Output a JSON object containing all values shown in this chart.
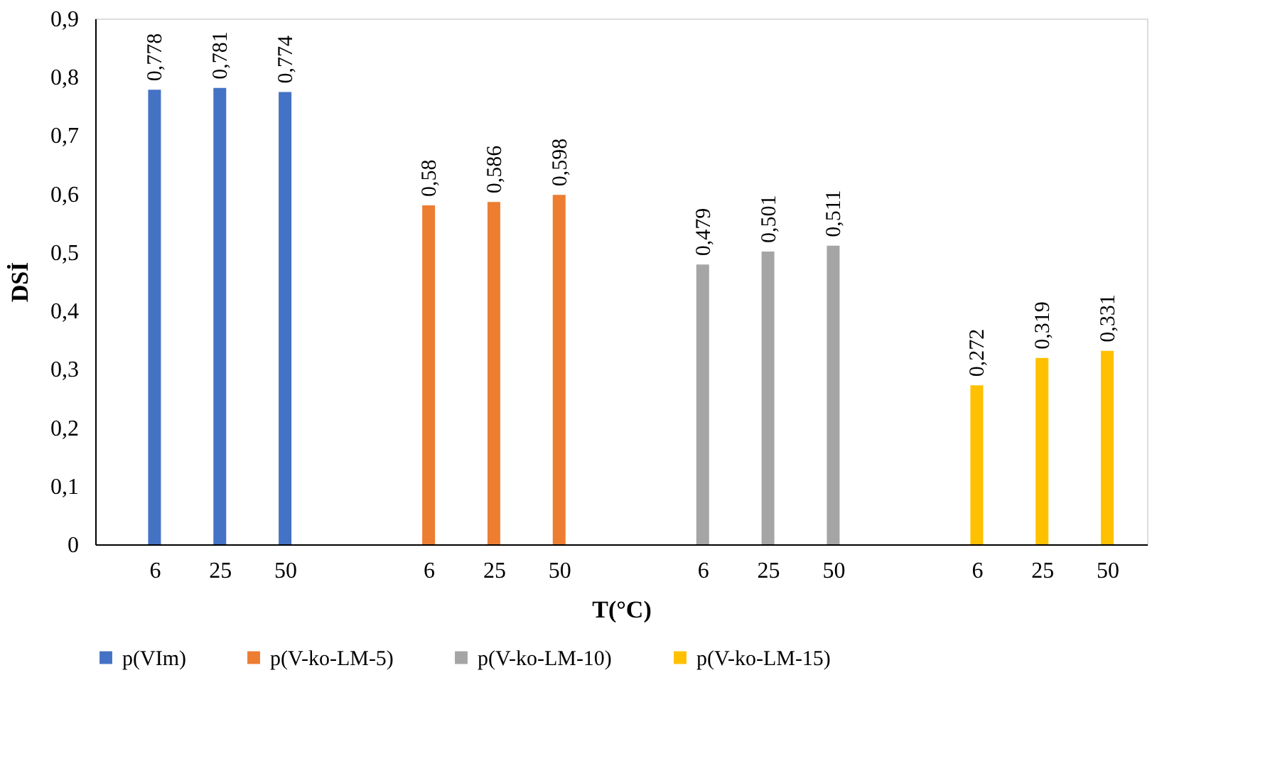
{
  "chart_data": {
    "type": "bar",
    "xlabel": "T(°C)",
    "ylabel": "DSİ",
    "categories": [
      "6",
      "25",
      "50",
      "6",
      "25",
      "50",
      "6",
      "25",
      "50",
      "6",
      "25",
      "50"
    ],
    "series": [
      {
        "name": "p(VIm)",
        "color": "#4472c4",
        "values": [
          0.778,
          0.781,
          0.774,
          null,
          null,
          null,
          null,
          null,
          null,
          null,
          null,
          null
        ],
        "value_labels": [
          "0,778",
          "0,781",
          "0,774",
          null,
          null,
          null,
          null,
          null,
          null,
          null,
          null,
          null
        ]
      },
      {
        "name": "p(V-ko-LM-5)",
        "color": "#ed7d31",
        "values": [
          null,
          null,
          null,
          0.58,
          0.586,
          0.598,
          null,
          null,
          null,
          null,
          null,
          null
        ],
        "value_labels": [
          null,
          null,
          null,
          "0,58",
          "0,586",
          "0,598",
          null,
          null,
          null,
          null,
          null,
          null
        ]
      },
      {
        "name": "p(V-ko-LM-10)",
        "color": "#a5a5a5",
        "values": [
          null,
          null,
          null,
          null,
          null,
          null,
          0.479,
          0.501,
          0.511,
          null,
          null,
          null
        ],
        "value_labels": [
          null,
          null,
          null,
          null,
          null,
          null,
          "0,479",
          "0,501",
          "0,511",
          null,
          null,
          null
        ]
      },
      {
        "name": "p(V-ko-LM-15)",
        "color": "#ffc000",
        "values": [
          null,
          null,
          null,
          null,
          null,
          null,
          null,
          null,
          null,
          0.272,
          0.319,
          0.331
        ],
        "value_labels": [
          null,
          null,
          null,
          null,
          null,
          null,
          null,
          null,
          null,
          "0,272",
          "0,319",
          "0,331"
        ]
      }
    ],
    "ylim": [
      0,
      0.9
    ],
    "yticks": [
      0,
      {
        "value": 0.1,
        "label": "0,1"
      },
      {
        "value": 0.2,
        "label": "0,2"
      },
      {
        "value": 0.3,
        "label": "0,3"
      },
      {
        "value": 0.4,
        "label": "0,4"
      },
      {
        "value": 0.5,
        "label": "0,5"
      },
      {
        "value": 0.6,
        "label": "0,6"
      },
      {
        "value": 0.7,
        "label": "0,7"
      },
      {
        "value": 0.8,
        "label": "0,8"
      },
      {
        "value": 0.9,
        "label": "0,9"
      }
    ],
    "grid": false,
    "legend": "bottom"
  }
}
